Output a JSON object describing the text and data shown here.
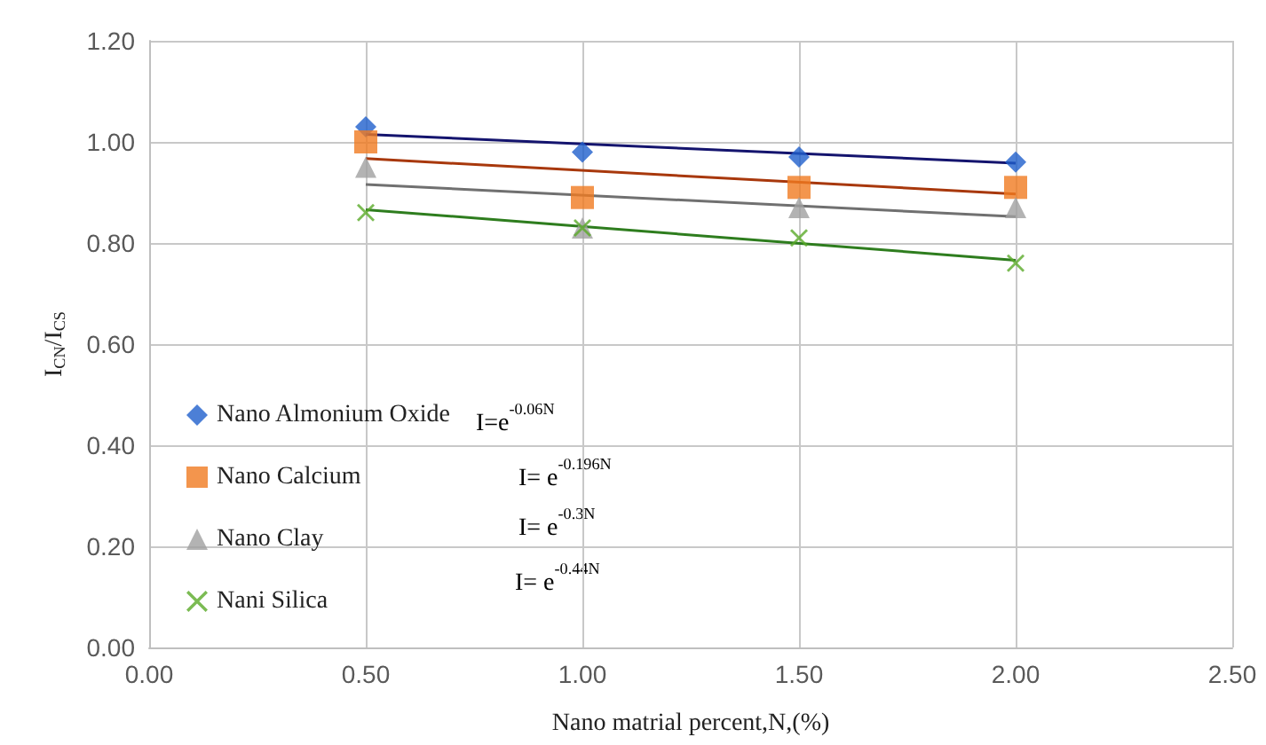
{
  "chart_data": {
    "type": "scatter",
    "xlabel": "Nano matrial percent,N,(%)",
    "ylabel": "I$_{CN}$/I$_{CS}$",
    "xlim": [
      0,
      2.5
    ],
    "xticks": [
      {
        "value": 0,
        "label": "0.00"
      },
      {
        "value": 0.5,
        "label": "0.50"
      },
      {
        "value": 1,
        "label": "1.00"
      },
      {
        "value": 1.5,
        "label": "1.50"
      },
      {
        "value": 2,
        "label": "2.00"
      },
      {
        "value": 2.5,
        "label": "2.50"
      }
    ],
    "ylim": [
      0,
      1.2
    ],
    "yticks": [
      {
        "value": 0,
        "label": "0.00"
      },
      {
        "value": 0.2,
        "label": "0.20"
      },
      {
        "value": 0.4,
        "label": "0.40"
      },
      {
        "value": 0.6,
        "label": "0.60"
      },
      {
        "value": 0.8,
        "label": "0.80"
      },
      {
        "value": 1,
        "label": "1.00"
      },
      {
        "value": 1.2,
        "label": "1.20"
      }
    ],
    "grid": true,
    "legend": "bottom left",
    "annotations": [
      "I=e$^{-0.06N}$",
      "I= e$^{-0.196N}$",
      "I= e$^{-0.3N}$",
      "I= e$^{-0.44N}$"
    ],
    "series": [
      {
        "name": "Nano Almonium Oxide",
        "color": "#1f5fcc",
        "marker": "diamond",
        "x": [
          0.5,
          1,
          1.5,
          2
        ],
        "values": [
          1.03,
          0.98,
          0.97,
          0.96
        ]
      },
      {
        "name": "Nano Calcium",
        "color": "#f07a20",
        "marker": "square",
        "x": [
          0.5,
          1,
          1.5,
          2
        ],
        "values": [
          1.0,
          0.89,
          0.91,
          0.91
        ]
      },
      {
        "name": "Nano Clay",
        "color": "#a0a0a0",
        "marker": "triangle",
        "x": [
          0.5,
          1,
          1.5,
          2
        ],
        "values": [
          0.95,
          0.83,
          0.87,
          0.87
        ]
      },
      {
        "name": "Nani Silica",
        "color": "#5aaa28",
        "marker": "cross",
        "x": [
          0.5,
          1,
          1.5,
          2
        ],
        "values": [
          0.86,
          0.83,
          0.81,
          0.76
        ]
      },
      {
        "type": "line",
        "color": "#14146e",
        "marker": "none",
        "x": [
          0.5,
          2
        ],
        "values": [
          1.015,
          0.958
        ]
      },
      {
        "type": "line",
        "color": "#a8380c",
        "marker": "none",
        "x": [
          0.5,
          2
        ],
        "values": [
          0.967,
          0.897
        ]
      },
      {
        "type": "line",
        "color": "#707070",
        "marker": "none",
        "x": [
          0.5,
          2
        ],
        "values": [
          0.916,
          0.852
        ]
      },
      {
        "type": "line",
        "color": "#2e7d1e",
        "marker": "none",
        "x": [
          0.5,
          2
        ],
        "values": [
          0.866,
          0.766
        ]
      }
    ]
  }
}
